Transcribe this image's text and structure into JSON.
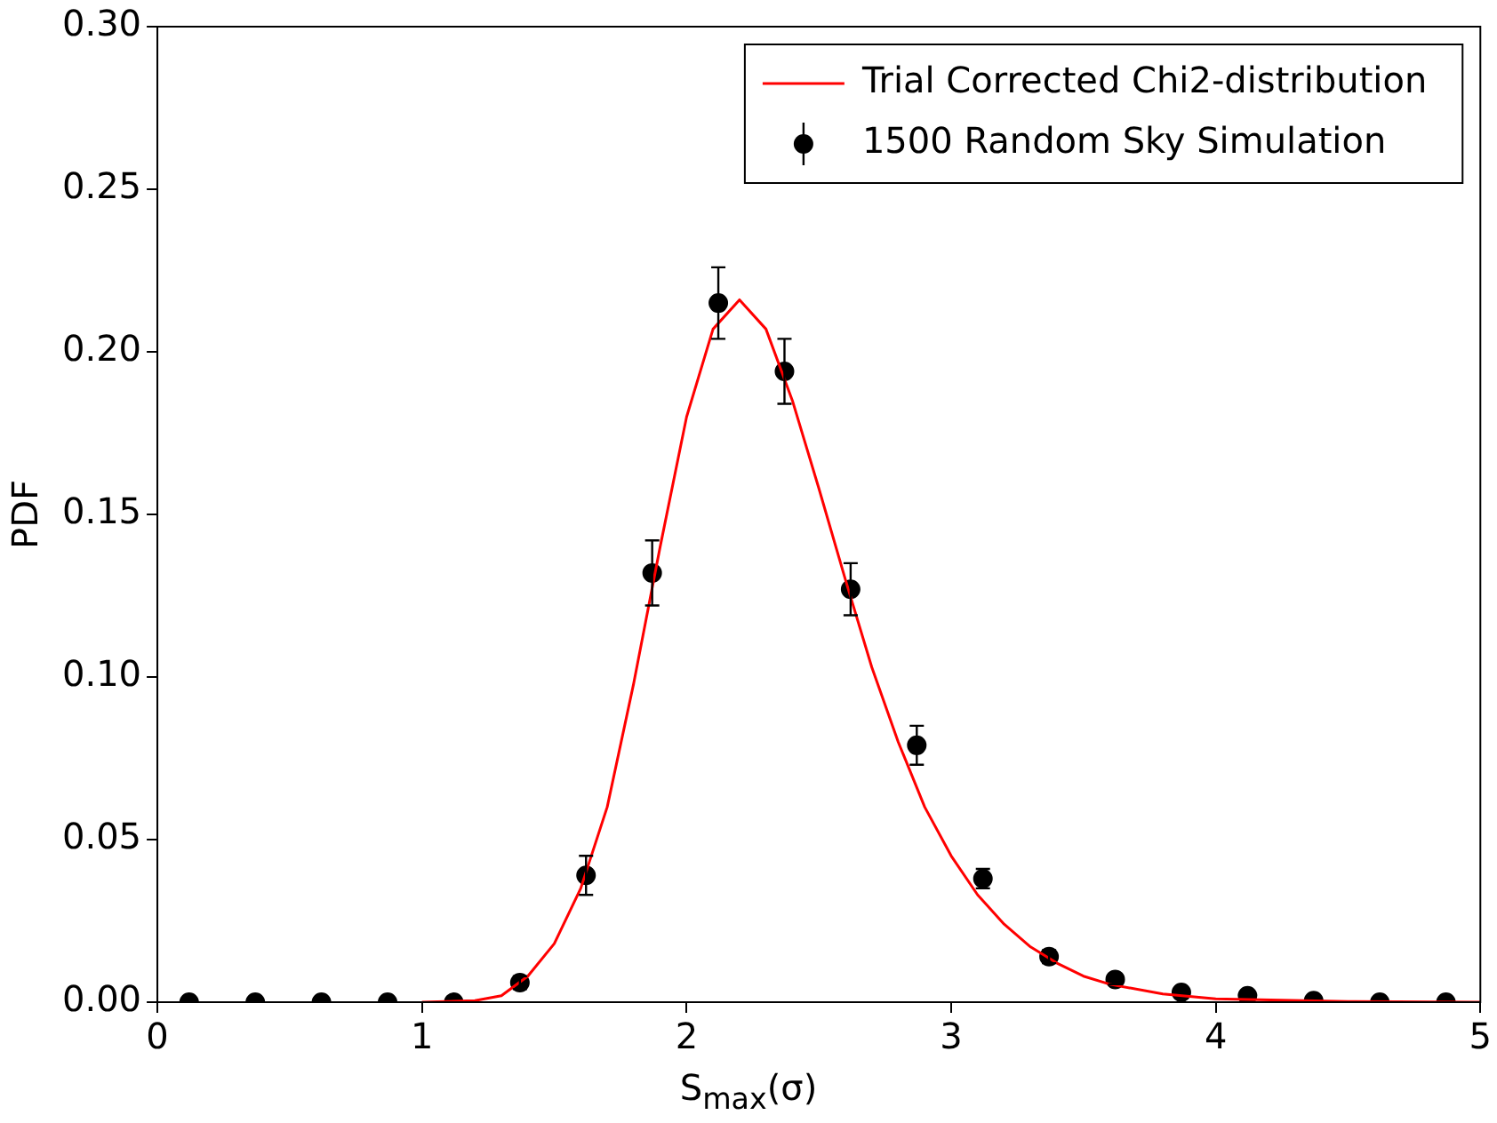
{
  "chart_data": {
    "type": "scatter",
    "xlabel": "S$_{max}$(σ)",
    "ylabel": "PDF",
    "xlim": [
      0,
      5
    ],
    "xticks": [
      0,
      1,
      2,
      3,
      4,
      5
    ],
    "ylim": [
      0,
      0.3
    ],
    "yticks": [
      {
        "value": 0,
        "label": "0.00"
      },
      {
        "value": 0.05,
        "label": "0.05"
      },
      {
        "value": 0.1,
        "label": "0.10"
      },
      {
        "value": 0.15,
        "label": "0.15"
      },
      {
        "value": 0.2,
        "label": "0.20"
      },
      {
        "value": 0.25,
        "label": "0.25"
      },
      {
        "value": 0.3,
        "label": "0.30"
      }
    ],
    "grid": false,
    "legend": "top right",
    "series": [
      {
        "name": "Trial Corrected Chi2-distribution",
        "type": "line",
        "color": "#ff0000",
        "marker": "none",
        "line_style": "solid",
        "x": [
          1.0,
          1.2,
          1.3,
          1.4,
          1.5,
          1.6,
          1.7,
          1.8,
          1.9,
          2.0,
          2.1,
          2.2,
          2.3,
          2.4,
          2.5,
          2.6,
          2.7,
          2.8,
          2.9,
          3.0,
          3.1,
          3.2,
          3.3,
          3.4,
          3.5,
          3.6,
          3.8,
          4.0,
          4.5,
          5.0
        ],
        "values": [
          0,
          0.0005,
          0.002,
          0.008,
          0.018,
          0.035,
          0.06,
          0.098,
          0.14,
          0.18,
          0.207,
          0.216,
          0.207,
          0.185,
          0.158,
          0.13,
          0.103,
          0.08,
          0.06,
          0.045,
          0.033,
          0.024,
          0.017,
          0.012,
          0.008,
          0.0055,
          0.0025,
          0.001,
          0.0002,
          0
        ]
      },
      {
        "name": "1500 Random Sky Simulation",
        "type": "scatter",
        "color": "#000000",
        "marker": "circle",
        "x": [
          0.12,
          0.37,
          0.62,
          0.87,
          1.12,
          1.37,
          1.62,
          1.87,
          2.12,
          2.37,
          2.62,
          2.87,
          3.12,
          3.37,
          3.62,
          3.87,
          4.12,
          4.37,
          4.62,
          4.87
        ],
        "values": [
          0,
          0,
          0,
          0,
          0,
          0.006,
          0.039,
          0.132,
          0.215,
          0.194,
          0.127,
          0.079,
          0.038,
          0.014,
          0.007,
          0.003,
          0.002,
          0.0005,
          0,
          0
        ],
        "errors": [
          null,
          null,
          null,
          null,
          null,
          0.002,
          0.006,
          0.01,
          0.011,
          0.01,
          0.008,
          0.006,
          0.003,
          0.002,
          0.0015,
          null,
          null,
          null,
          null,
          null
        ]
      }
    ]
  }
}
